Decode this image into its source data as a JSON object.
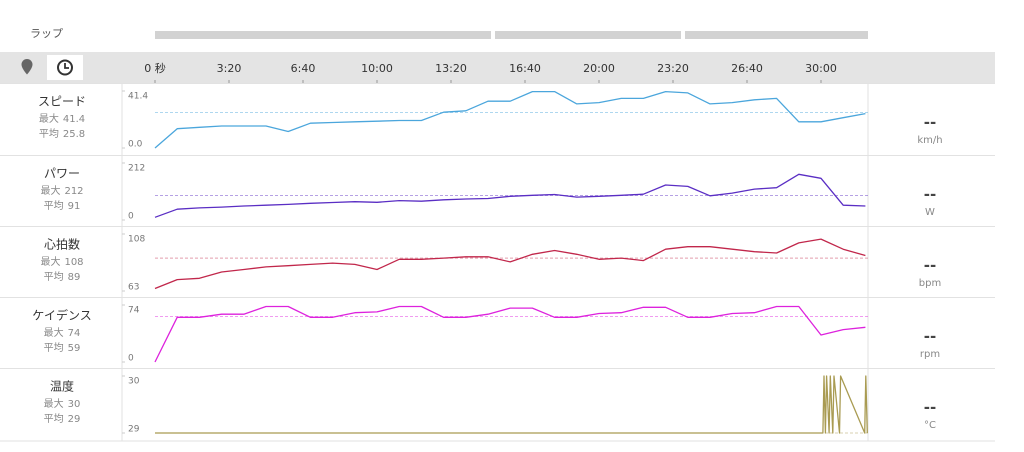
{
  "laps": {
    "label": "ラップ"
  },
  "time_axis": {
    "xlim": [
      0,
      1927
    ],
    "xticks": [
      {
        "value": 0,
        "label": "0 秒"
      },
      {
        "value": 200,
        "label": "3:20"
      },
      {
        "value": 400,
        "label": "6:40"
      },
      {
        "value": 600,
        "label": "10:00"
      },
      {
        "value": 800,
        "label": "13:20"
      },
      {
        "value": 1000,
        "label": "16:40"
      },
      {
        "value": 1200,
        "label": "20:00"
      },
      {
        "value": 1400,
        "label": "23:20"
      },
      {
        "value": 1600,
        "label": "26:40"
      },
      {
        "value": 1800,
        "label": "30:00"
      }
    ]
  },
  "chart_data": [
    {
      "type": "line",
      "title": "スピード",
      "max_label": "最大",
      "max": 41.4,
      "avg_label": "平均",
      "average": 25.8,
      "current": "--",
      "unit": "km/h",
      "color": "#4ba6dc",
      "xlim": [
        0,
        1927
      ],
      "ylim": [
        0,
        41.4
      ],
      "yticks": [
        41.4,
        {
          "value": 0,
          "label": "0.0"
        }
      ],
      "x": [
        0,
        60,
        120,
        180,
        240,
        300,
        360,
        420,
        480,
        540,
        600,
        660,
        720,
        780,
        840,
        900,
        960,
        1020,
        1080,
        1140,
        1200,
        1260,
        1320,
        1380,
        1440,
        1500,
        1560,
        1620,
        1680,
        1740,
        1800,
        1860,
        1920
      ],
      "values": [
        0,
        14,
        15,
        16,
        16,
        16,
        12,
        18,
        18.5,
        19,
        19.5,
        20,
        20,
        26,
        27,
        34,
        34,
        41,
        41,
        32,
        33,
        36,
        36,
        41,
        40,
        32,
        33,
        35,
        36,
        19,
        19,
        22,
        25
      ]
    },
    {
      "type": "line",
      "title": "パワー",
      "max_label": "最大",
      "max": 212,
      "avg_label": "平均",
      "average": 91,
      "current": "--",
      "unit": "W",
      "color": "#5a2ec4",
      "xlim": [
        0,
        1927
      ],
      "ylim": [
        0,
        212
      ],
      "yticks": [
        212,
        0
      ],
      "x": [
        0,
        60,
        120,
        180,
        240,
        300,
        360,
        420,
        480,
        540,
        600,
        660,
        720,
        780,
        840,
        900,
        960,
        1020,
        1080,
        1140,
        1200,
        1260,
        1320,
        1380,
        1440,
        1500,
        1560,
        1620,
        1680,
        1740,
        1800,
        1860,
        1920
      ],
      "values": [
        10,
        40,
        45,
        48,
        52,
        55,
        58,
        62,
        65,
        68,
        66,
        72,
        70,
        75,
        78,
        80,
        88,
        92,
        95,
        85,
        88,
        92,
        96,
        130,
        125,
        90,
        100,
        115,
        120,
        170,
        155,
        55,
        52
      ]
    },
    {
      "type": "line",
      "title": "心拍数",
      "max_label": "最大",
      "max": 108,
      "avg_label": "平均",
      "average": 89,
      "current": "--",
      "unit": "bpm",
      "color": "#c1274b",
      "xlim": [
        0,
        1927
      ],
      "ylim": [
        63,
        108
      ],
      "yticks": [
        108,
        63
      ],
      "x": [
        0,
        60,
        120,
        180,
        240,
        300,
        360,
        420,
        480,
        540,
        600,
        660,
        720,
        780,
        840,
        900,
        960,
        1020,
        1080,
        1140,
        1200,
        1260,
        1320,
        1380,
        1440,
        1500,
        1560,
        1620,
        1680,
        1740,
        1800,
        1860,
        1920
      ],
      "values": [
        65,
        72,
        73,
        78,
        80,
        82,
        83,
        84,
        85,
        84,
        80,
        88,
        88,
        89,
        90,
        90,
        86,
        92,
        95,
        92,
        88,
        89,
        87,
        96,
        98,
        98,
        96,
        94,
        93,
        101,
        104,
        96,
        91
      ]
    },
    {
      "type": "line",
      "title": "ケイデンス",
      "max_label": "最大",
      "max": 74,
      "avg_label": "平均",
      "average": 59,
      "current": "--",
      "unit": "rpm",
      "color": "#dd22dd",
      "xlim": [
        0,
        1927
      ],
      "ylim": [
        0,
        74
      ],
      "yticks": [
        74,
        0
      ],
      "x": [
        0,
        60,
        120,
        180,
        240,
        300,
        360,
        420,
        480,
        540,
        600,
        660,
        720,
        780,
        840,
        900,
        960,
        1020,
        1080,
        1140,
        1200,
        1260,
        1320,
        1380,
        1440,
        1500,
        1560,
        1620,
        1680,
        1740,
        1800,
        1860,
        1920
      ],
      "values": [
        0,
        58,
        58,
        62,
        62,
        72,
        72,
        58,
        58,
        64,
        65,
        72,
        72,
        58,
        58,
        62,
        70,
        70,
        58,
        58,
        63,
        64,
        71,
        71,
        58,
        58,
        63,
        64,
        72,
        72,
        35,
        42,
        45
      ]
    },
    {
      "type": "line",
      "title": "温度",
      "max_label": "最大",
      "max": 30,
      "avg_label": "平均",
      "average": 29,
      "current": "--",
      "unit": "°C",
      "color": "#a99b52",
      "xlim": [
        0,
        1927
      ],
      "ylim": [
        29,
        30
      ],
      "yticks": [
        30,
        29
      ],
      "x": [
        0,
        1805,
        1808,
        1812,
        1815,
        1822,
        1825,
        1832,
        1835,
        1850,
        1853,
        1918,
        1921,
        1925
      ],
      "values": [
        29,
        29,
        30,
        29,
        30,
        29,
        30,
        29,
        30,
        29,
        30,
        29,
        30,
        29
      ]
    }
  ]
}
